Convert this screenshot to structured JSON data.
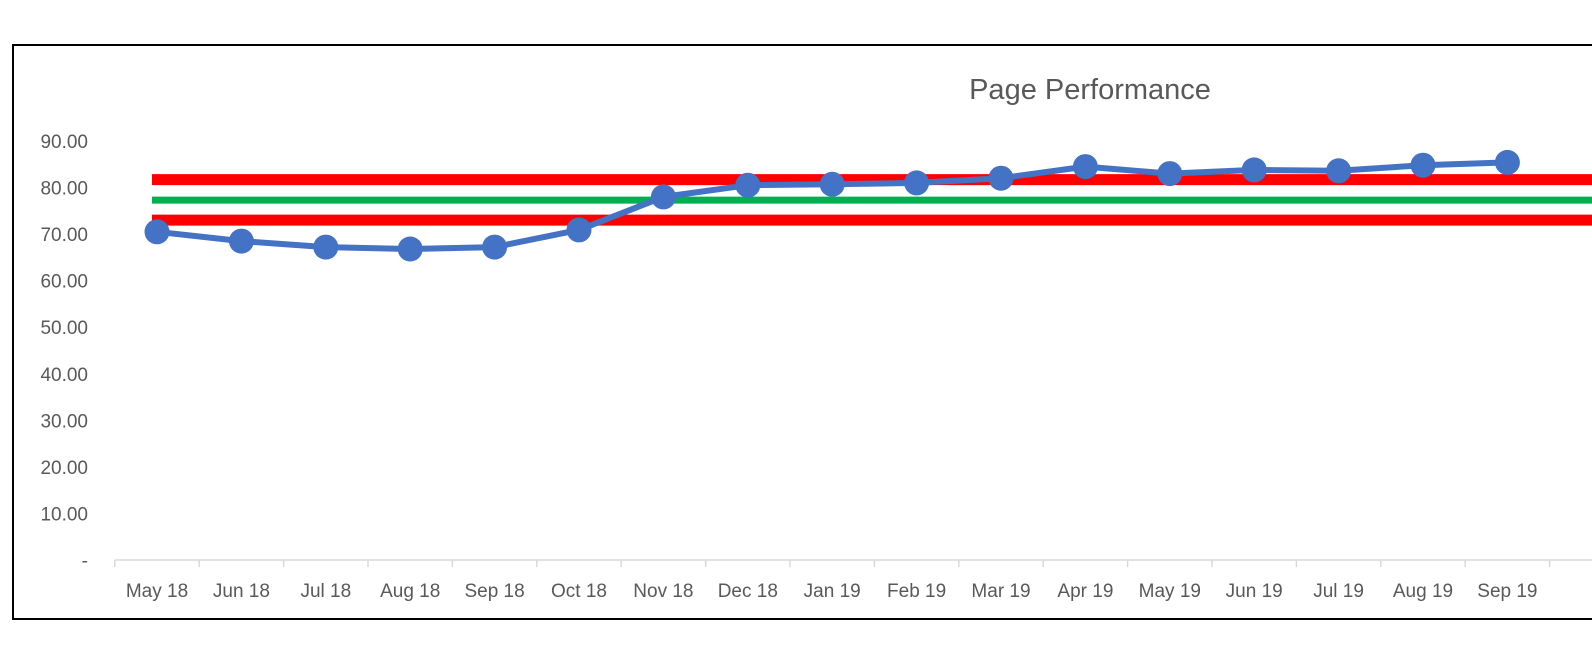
{
  "chart_data": {
    "type": "line",
    "title": "Page Performance",
    "xlabel": "",
    "ylabel": "",
    "categories": [
      "May 18",
      "Jun 18",
      "Jul 18",
      "Aug 18",
      "Sep 18",
      "Oct 18",
      "Nov 18",
      "Dec 18",
      "Jan 19",
      "Feb 19",
      "Mar 19",
      "Apr 19",
      "May 19",
      "Jun 19",
      "Jul 19",
      "Aug 19",
      "Sep 19"
    ],
    "y_tick_labels": [
      "-",
      "10.00",
      "20.00",
      "30.00",
      "40.00",
      "50.00",
      "60.00",
      "70.00",
      "80.00",
      "90.00"
    ],
    "ylim": [
      0,
      90
    ],
    "grid": false,
    "legend": "none",
    "series": [
      {
        "values": [
          70.5,
          68.5,
          67.2,
          66.8,
          67.2,
          70.9,
          78.0,
          80.5,
          80.7,
          81.0,
          82.0,
          84.5,
          83.0,
          83.8,
          83.6,
          84.8,
          85.4
        ],
        "color": "#4472C4",
        "markers": true
      }
    ],
    "reference_lines": [
      {
        "value": 81.7,
        "color": "#FF0000"
      },
      {
        "value": 77.3,
        "color": "#00B050"
      },
      {
        "value": 73.0,
        "color": "#FF0000"
      }
    ]
  }
}
